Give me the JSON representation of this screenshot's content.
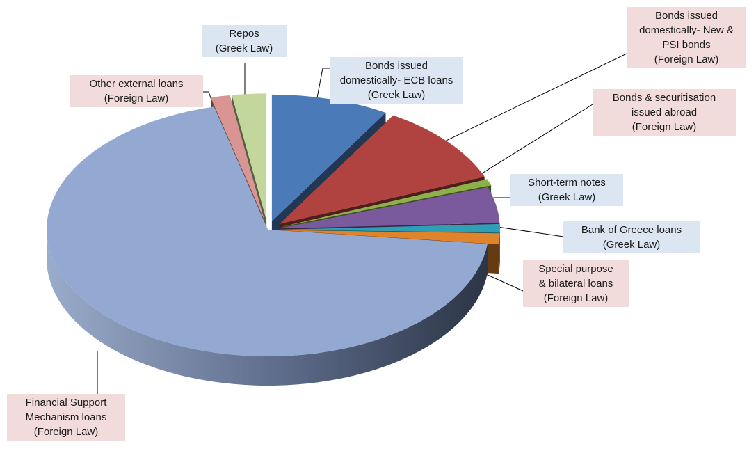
{
  "chart_data": {
    "type": "pie",
    "style": "3D exploded pie",
    "slices": [
      {
        "label": [
          "Bonds issued",
          "domestically- ECB loans",
          "(Greek Law)"
        ],
        "value": 8.6,
        "law": "greek",
        "color": "#4a7ab8"
      },
      {
        "label": [
          "Bonds issued",
          "domestically- New &",
          "PSI bonds",
          "(Foreign Law)"
        ],
        "value": 10.3,
        "law": "foreign",
        "color": "#b0433f"
      },
      {
        "label": [
          "Bonds & securitisation",
          "issued abroad",
          "(Foreign Law)"
        ],
        "value": 0.8,
        "law": "foreign",
        "color": "#8db04a"
      },
      {
        "label": [
          "Short-term notes",
          "(Greek Law)"
        ],
        "value": 4.6,
        "law": "greek",
        "color": "#7a5a9c"
      },
      {
        "label": [
          "Bank of Greece loans",
          "(Greek Law)"
        ],
        "value": 1.1,
        "law": "greek",
        "color": "#2e9fb5"
      },
      {
        "label": [
          "Special purpose",
          "& bilateral loans",
          "(Foreign Law)"
        ],
        "value": 1.4,
        "law": "foreign",
        "color": "#e0832d"
      },
      {
        "label": [
          "Financial Support",
          "Mechanism loans",
          "(Foreign Law)"
        ],
        "value": 69.3,
        "law": "foreign",
        "color": "#93a9d2"
      },
      {
        "label": [
          "Other external loans",
          "(Foreign Law)"
        ],
        "value": 1.4,
        "law": "foreign",
        "color": "#d99594"
      },
      {
        "label": [
          "Repos",
          "(Greek Law)"
        ],
        "value": 2.5,
        "law": "greek",
        "color": "#c3d69b"
      }
    ],
    "legend": "none",
    "title": ""
  }
}
